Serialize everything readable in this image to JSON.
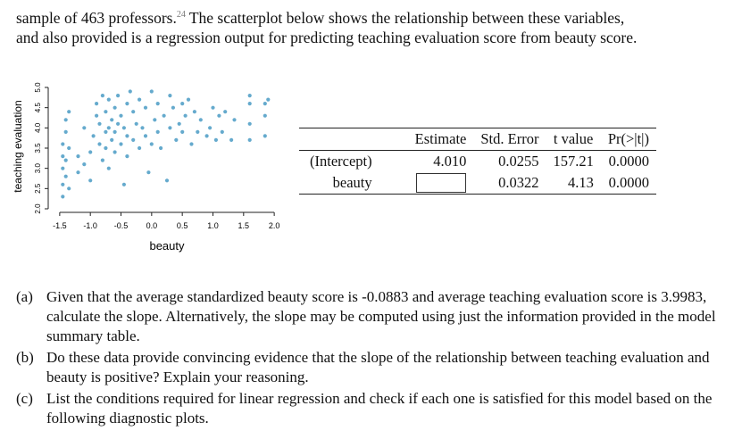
{
  "intro": {
    "line1": "sample of 463 professors.",
    "footnote": "24",
    "line1_rest": "The scatterplot below shows the relationship between these variables,",
    "line2": "and also provided is a regression output for predicting teaching evaluation score from beauty score."
  },
  "chart_data": {
    "type": "scatter",
    "xlabel": "beauty",
    "ylabel": "teaching evaluation",
    "xlim": [
      -1.6,
      2.1
    ],
    "ylim": [
      2.0,
      5.0
    ],
    "xticks": [
      "-1.5",
      "-1.0",
      "-0.5",
      "0.0",
      "0.5",
      "1.0",
      "1.5",
      "2.0"
    ],
    "yticks": [
      "2.0",
      "2.5",
      "3.0",
      "3.5",
      "4.0",
      "4.5",
      "5.0"
    ],
    "point_color": "#4a9bc4",
    "n_points": 463,
    "x": [
      -1.45,
      -1.45,
      -1.45,
      -1.45,
      -1.45,
      -1.4,
      -1.4,
      -1.4,
      -1.4,
      -1.35,
      -1.35,
      -1.35,
      -1.2,
      -1.2,
      -1.1,
      -1.1,
      -1.0,
      -1.0,
      -0.95,
      -0.9,
      -0.9,
      -0.85,
      -0.85,
      -0.8,
      -0.8,
      -0.75,
      -0.75,
      -0.75,
      -0.7,
      -0.7,
      -0.7,
      -0.65,
      -0.65,
      -0.6,
      -0.6,
      -0.6,
      -0.55,
      -0.55,
      -0.5,
      -0.5,
      -0.45,
      -0.45,
      -0.4,
      -0.4,
      -0.4,
      -0.35,
      -0.3,
      -0.3,
      -0.25,
      -0.2,
      -0.2,
      -0.15,
      -0.1,
      -0.1,
      -0.05,
      0.0,
      0.0,
      0.05,
      0.1,
      0.1,
      0.15,
      0.2,
      0.25,
      0.3,
      0.3,
      0.35,
      0.4,
      0.45,
      0.5,
      0.5,
      0.55,
      0.6,
      0.65,
      0.7,
      0.75,
      0.8,
      0.9,
      0.95,
      1.0,
      1.05,
      1.1,
      1.15,
      1.2,
      1.3,
      1.35,
      1.6,
      1.6,
      1.6,
      1.6,
      1.85,
      1.85,
      1.85,
      1.9
    ],
    "y": [
      2.3,
      2.6,
      3.0,
      3.3,
      3.6,
      2.8,
      3.2,
      3.9,
      4.2,
      2.5,
      3.5,
      4.4,
      2.9,
      3.3,
      3.1,
      4.0,
      2.7,
      3.4,
      3.8,
      4.3,
      4.6,
      3.6,
      4.1,
      3.2,
      4.8,
      3.5,
      3.9,
      4.4,
      3.0,
      4.0,
      4.7,
      3.7,
      4.2,
      3.4,
      4.5,
      3.9,
      4.1,
      4.8,
      3.6,
      4.3,
      2.6,
      4.0,
      3.3,
      3.8,
      4.6,
      4.9,
      3.7,
      4.4,
      4.1,
      3.5,
      4.7,
      4.0,
      3.8,
      4.5,
      2.9,
      3.6,
      4.9,
      4.2,
      3.9,
      4.6,
      3.5,
      4.3,
      2.7,
      4.0,
      4.8,
      4.5,
      3.7,
      4.1,
      3.9,
      4.6,
      4.3,
      4.7,
      3.6,
      4.4,
      3.9,
      4.2,
      3.8,
      4.0,
      4.5,
      3.7,
      4.3,
      3.9,
      4.4,
      3.7,
      4.2,
      3.7,
      4.1,
      4.6,
      4.8,
      3.8,
      4.3,
      4.6,
      4.7
    ]
  },
  "table": {
    "headers": [
      "",
      "Estimate",
      "Std. Error",
      "t value",
      "Pr(>|t|)"
    ],
    "rows": [
      {
        "label": "(Intercept)",
        "estimate": "4.010",
        "se": "0.0255",
        "t": "157.21",
        "p": "0.0000"
      },
      {
        "label": "beauty",
        "estimate": "",
        "se": "0.0322",
        "t": "4.13",
        "p": "0.0000"
      }
    ]
  },
  "questions": [
    {
      "label": "(a)",
      "text": "Given that the average standardized beauty score is -0.0883 and average teaching evaluation score is 3.9983, calculate the slope. Alternatively, the slope may be computed using just the information provided in the model summary table."
    },
    {
      "label": "(b)",
      "text": "Do these data provide convincing evidence that the slope of the relationship between teaching evaluation and beauty is positive? Explain your reasoning."
    },
    {
      "label": "(c)",
      "text": "List the conditions required for linear regression and check if each one is satisfied for this model based on the following diagnostic plots."
    }
  ]
}
